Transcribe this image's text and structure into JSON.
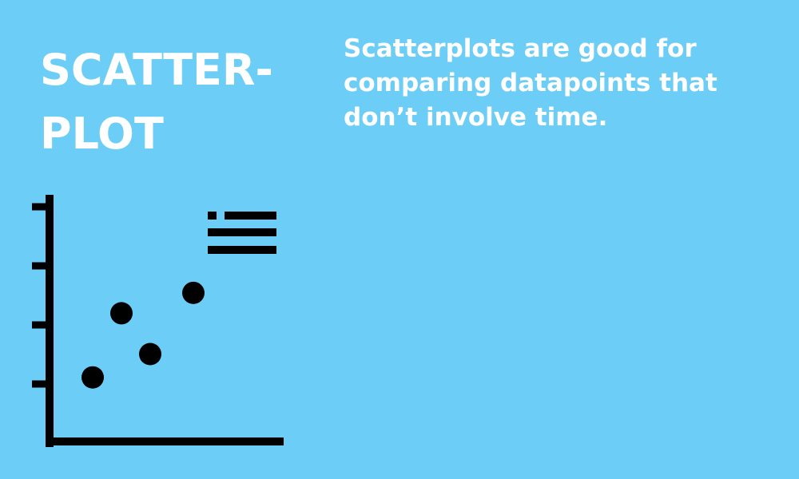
{
  "colors": {
    "background": "#6ccdf7",
    "text": "#ffffff",
    "icon": "#000000"
  },
  "title": {
    "lines": [
      "SCATTER-",
      "PLOT"
    ]
  },
  "description": "Scatterplots are good for comparing datapoints that don’t involve time.",
  "illustration": {
    "icon": "scatterplot-icon",
    "points": [
      {
        "x": 1.5,
        "y": 1.1
      },
      {
        "x": 2.5,
        "y": 2.2
      },
      {
        "x": 3.5,
        "y": 1.5
      },
      {
        "x": 5.0,
        "y": 2.55
      }
    ]
  }
}
